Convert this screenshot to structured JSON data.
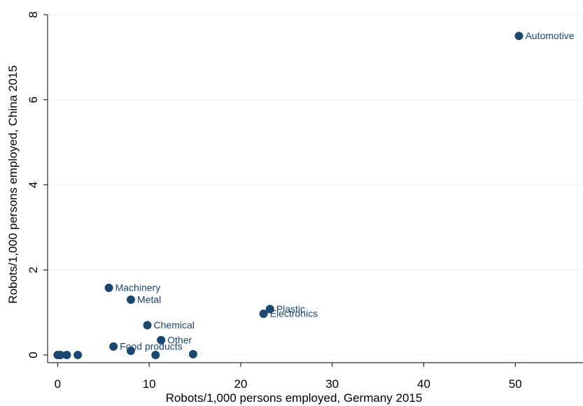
{
  "chart_data": {
    "type": "scatter",
    "x_label": "Robots/1,000 persons employed, Germany 2015",
    "y_label": "Robots/1,000 persons employed, China 2015",
    "x": [
      50.4,
      5.6,
      8.0,
      23.2,
      22.5,
      9.8,
      11.3,
      6.1,
      8.0,
      10.7,
      14.8,
      2.2,
      1.0,
      0.3,
      0
    ],
    "values": [
      7.5,
      1.58,
      1.3,
      1.08,
      0.97,
      0.7,
      0.35,
      0.2,
      0.1,
      0,
      0.02,
      0,
      0,
      0,
      0
    ],
    "labels": [
      "Automotive",
      "Machinery",
      "Metal",
      "Plastic",
      "Electronics",
      "Chemical",
      "Other",
      "Food products",
      null,
      null,
      null,
      null,
      null,
      null,
      null
    ],
    "color": "#1a476f",
    "xlim": [
      -1.1,
      57.4
    ],
    "ylim": [
      -0.18,
      8
    ],
    "xticks": [
      0,
      10,
      20,
      30,
      40,
      50
    ],
    "yticks": [
      0,
      2,
      4,
      6,
      8
    ],
    "grid": true
  }
}
